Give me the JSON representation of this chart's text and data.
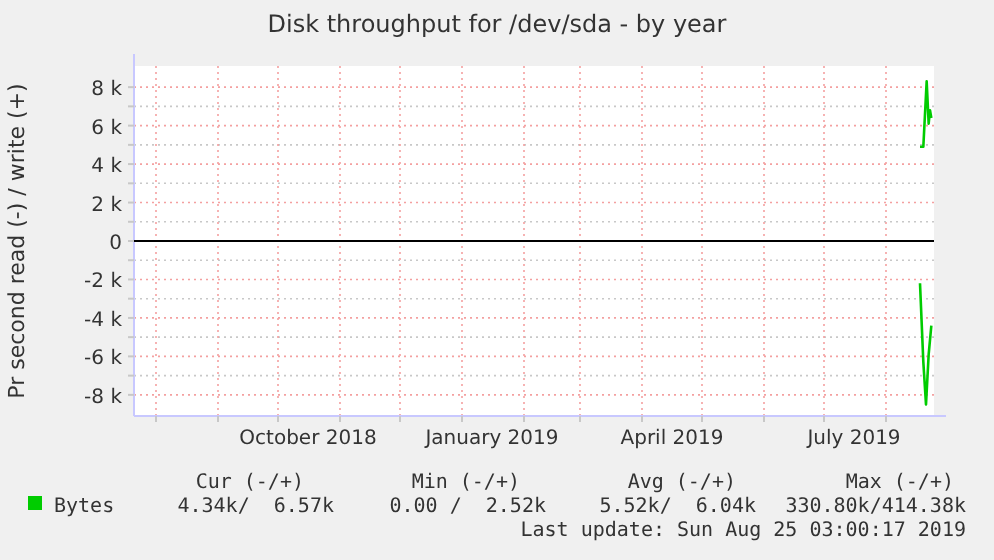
{
  "chart_data": {
    "type": "line",
    "title": "Disk throughput for /dev/sda - by year",
    "ylabel": "Pr second read (-) / write (+)",
    "xlim": [
      "2018-07-21",
      "2019-08-25"
    ],
    "xticks": [
      {
        "value": "2018-08-01",
        "label": null
      },
      {
        "value": "2018-09-01",
        "label": null
      },
      {
        "value": "2018-10-01",
        "label": null
      },
      {
        "value": "2018-10-16",
        "label": "October 2018"
      },
      {
        "value": "2018-11-01",
        "label": null
      },
      {
        "value": "2018-12-01",
        "label": null
      },
      {
        "value": "2019-01-01",
        "label": null
      },
      {
        "value": "2019-01-16",
        "label": "January 2019"
      },
      {
        "value": "2019-02-01",
        "label": null
      },
      {
        "value": "2019-03-01",
        "label": null
      },
      {
        "value": "2019-04-01",
        "label": null
      },
      {
        "value": "2019-04-16",
        "label": "April 2019"
      },
      {
        "value": "2019-05-01",
        "label": null
      },
      {
        "value": "2019-06-01",
        "label": null
      },
      {
        "value": "2019-07-01",
        "label": null
      },
      {
        "value": "2019-07-16",
        "label": "July 2019"
      },
      {
        "value": "2019-08-01",
        "label": null
      }
    ],
    "ylim": [
      -9100,
      9100
    ],
    "yticks": [
      {
        "value": -8000,
        "label": "-8 k"
      },
      {
        "value": -7000,
        "label": null
      },
      {
        "value": -6000,
        "label": "-6 k"
      },
      {
        "value": -5000,
        "label": null
      },
      {
        "value": -4000,
        "label": "-4 k"
      },
      {
        "value": -3000,
        "label": null
      },
      {
        "value": -2000,
        "label": "-2 k"
      },
      {
        "value": -1000,
        "label": null
      },
      0,
      {
        "value": 1000,
        "label": null
      },
      {
        "value": 2000,
        "label": "2 k"
      },
      {
        "value": 3000,
        "label": null
      },
      {
        "value": 4000,
        "label": "4 k"
      },
      {
        "value": 5000,
        "label": null
      },
      {
        "value": 6000,
        "label": "6 k"
      },
      {
        "value": 7000,
        "label": null
      },
      {
        "value": 8000,
        "label": "8 k"
      }
    ],
    "grid": true,
    "legend": "bottom left",
    "ref_lines": [
      {
        "axis": "y",
        "value": 0,
        "color": "#000000"
      }
    ],
    "series": [
      {
        "name": "Bytes",
        "color": "#00cc00",
        "x": [
          "2019-08-18",
          "2019-08-19T16:00",
          "2019-08-21T08:00",
          "2019-08-22T08:00",
          "2019-08-23",
          "2019-08-23T16:00"
        ],
        "values": [
          4900,
          4900,
          8300,
          6100,
          6800,
          6400
        ]
      },
      {
        "color": "#00cc00",
        "x": [
          "2019-08-18",
          "2019-08-19T16:00",
          "2019-08-21",
          "2019-08-22T08:00",
          "2019-08-23T16:00"
        ],
        "values": [
          -2200,
          -6300,
          -8500,
          -5900,
          -4400
        ]
      }
    ],
    "annotations": [
      "Cur (-/+)",
      "Min (-/+)",
      "Avg (-/+)",
      "Max (-/+)",
      "4.34k/  6.57k",
      "0.00 /  2.52k",
      "5.52k/  6.04k",
      "330.80k/414.38k",
      "Last update: Sun Aug 25 03:00:17 2019"
    ]
  }
}
